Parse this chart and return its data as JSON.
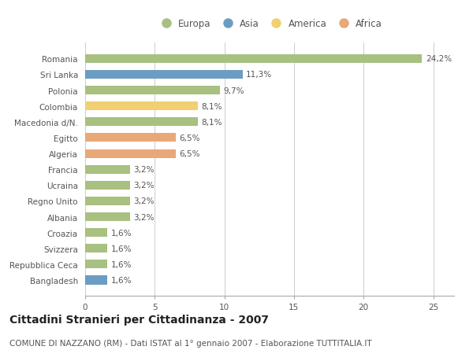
{
  "categories": [
    "Romania",
    "Sri Lanka",
    "Polonia",
    "Colombia",
    "Macedonia d/N.",
    "Egitto",
    "Algeria",
    "Francia",
    "Ucraina",
    "Regno Unito",
    "Albania",
    "Croazia",
    "Svizzera",
    "Repubblica Ceca",
    "Bangladesh"
  ],
  "values": [
    24.2,
    11.3,
    9.7,
    8.1,
    8.1,
    6.5,
    6.5,
    3.2,
    3.2,
    3.2,
    3.2,
    1.6,
    1.6,
    1.6,
    1.6
  ],
  "labels": [
    "24,2%",
    "11,3%",
    "9,7%",
    "8,1%",
    "8,1%",
    "6,5%",
    "6,5%",
    "3,2%",
    "3,2%",
    "3,2%",
    "3,2%",
    "1,6%",
    "1,6%",
    "1,6%",
    "1,6%"
  ],
  "colors": [
    "#a8c080",
    "#6b9dc2",
    "#a8c080",
    "#f0d070",
    "#a8c080",
    "#e8a878",
    "#e8a878",
    "#a8c080",
    "#a8c080",
    "#a8c080",
    "#a8c080",
    "#a8c080",
    "#a8c080",
    "#a8c080",
    "#6b9dc2"
  ],
  "legend_labels": [
    "Europa",
    "Asia",
    "America",
    "Africa"
  ],
  "legend_colors": [
    "#a8c080",
    "#6b9dc2",
    "#f0d070",
    "#e8a878"
  ],
  "xlim": [
    0,
    26.5
  ],
  "xticks": [
    0,
    5,
    10,
    15,
    20,
    25
  ],
  "title": "Cittadini Stranieri per Cittadinanza - 2007",
  "subtitle": "COMUNE DI NAZZANO (RM) - Dati ISTAT al 1° gennaio 2007 - Elaborazione TUTTITALIA.IT",
  "title_fontsize": 10,
  "subtitle_fontsize": 7.5,
  "label_fontsize": 7.5,
  "tick_fontsize": 7.5,
  "legend_fontsize": 8.5,
  "background_color": "#ffffff",
  "grid_color": "#cccccc",
  "bar_height": 0.55
}
